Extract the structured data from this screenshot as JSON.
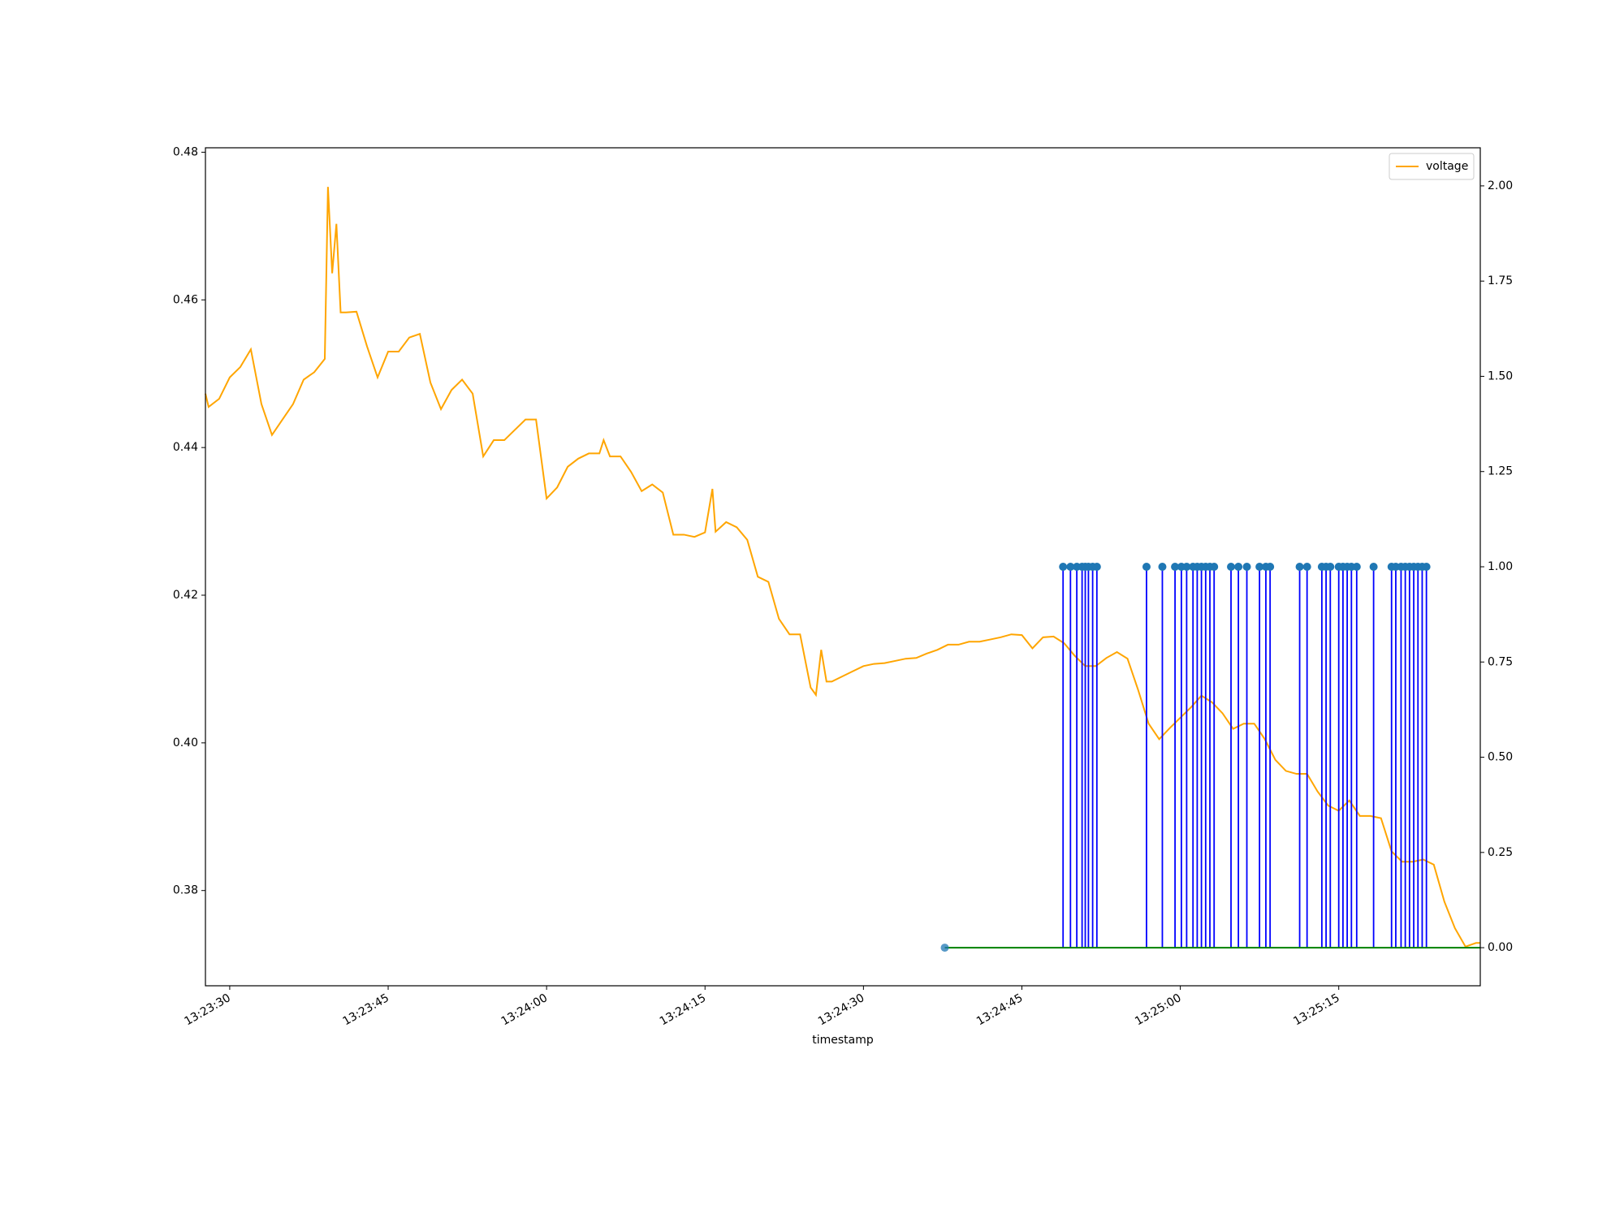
{
  "chart_data": {
    "type": "line",
    "xlabel": "timestamp",
    "xlim": [
      "13:23:27.7",
      "13:25:28.4"
    ],
    "xticks": [
      "13:23:30",
      "13:23:45",
      "13:24:00",
      "13:24:15",
      "13:24:30",
      "13:24:45",
      "13:25:00",
      "13:25:15"
    ],
    "ylim": [
      0.3671,
      0.4806
    ],
    "yticks": [
      0.38,
      {
        "value": 0.4,
        "label": "0.40"
      },
      0.42,
      0.44,
      0.46,
      0.48
    ],
    "y2lim": [
      -0.1,
      2.1
    ],
    "y2ticks": [
      {
        "value": 0,
        "label": "0.00"
      },
      0.25,
      {
        "value": 0.5,
        "label": "0.50"
      },
      0.75,
      {
        "value": 1,
        "label": "1.00"
      },
      1.25,
      {
        "value": 1.5,
        "label": "1.50"
      },
      1.75,
      {
        "value": 2,
        "label": "2.00"
      }
    ],
    "legend": "upper right",
    "series": [
      {
        "name": "voltage",
        "type": "line",
        "color": "#ffa500",
        "x": [
          "13:23:27.7",
          "13:23:28",
          "13:23:29",
          "13:23:30",
          "13:23:31",
          "13:23:32",
          "13:23:33",
          "13:23:34",
          "13:23:35",
          "13:23:36",
          "13:23:37",
          "13:23:38",
          "13:23:39",
          "13:23:39.3",
          "13:23:39.7",
          "13:23:40.1",
          "13:23:40.5",
          "13:23:41",
          "13:23:42",
          "13:23:43",
          "13:23:44",
          "13:23:45",
          "13:23:46",
          "13:23:47",
          "13:23:48",
          "13:23:49",
          "13:23:50",
          "13:23:51",
          "13:23:52",
          "13:23:53",
          "13:23:54",
          "13:23:55",
          "13:23:56",
          "13:23:57",
          "13:23:58",
          "13:23:59",
          "13:24:00",
          "13:24:01",
          "13:24:02",
          "13:24:03",
          "13:24:04",
          "13:24:05",
          "13:24:05.4",
          "13:24:06",
          "13:24:07",
          "13:24:08",
          "13:24:09",
          "13:24:10",
          "13:24:11",
          "13:24:12",
          "13:24:13",
          "13:24:14",
          "13:24:15",
          "13:24:15.7",
          "13:24:16",
          "13:24:17",
          "13:24:18",
          "13:24:19",
          "13:24:20",
          "13:24:21",
          "13:24:22",
          "13:24:23",
          "13:24:24",
          "13:24:25",
          "13:24:25.5",
          "13:24:26",
          "13:24:26.5",
          "13:24:27",
          "13:24:28",
          "13:24:29",
          "13:24:30",
          "13:24:31",
          "13:24:32",
          "13:24:33",
          "13:24:34",
          "13:24:35",
          "13:24:36",
          "13:24:37",
          "13:24:38",
          "13:24:39",
          "13:24:40",
          "13:24:41",
          "13:24:42",
          "13:24:43",
          "13:24:44",
          "13:24:45",
          "13:24:46",
          "13:24:47",
          "13:24:48",
          "13:24:49",
          "13:24:50",
          "13:24:51",
          "13:24:52",
          "13:24:53",
          "13:24:54",
          "13:24:55",
          "13:24:56",
          "13:24:57",
          "13:24:58",
          "13:24:59",
          "13:25:00",
          "13:25:01",
          "13:25:02",
          "13:25:03",
          "13:25:04",
          "13:25:05",
          "13:25:06",
          "13:25:07",
          "13:25:08",
          "13:25:09",
          "13:25:10",
          "13:25:11",
          "13:25:12",
          "13:25:13",
          "13:25:14",
          "13:25:15",
          "13:25:16",
          "13:25:17",
          "13:25:18",
          "13:25:19",
          "13:25:20",
          "13:25:21",
          "13:25:22",
          "13:25:23",
          "13:25:24",
          "13:25:25",
          "13:25:26",
          "13:25:27",
          "13:25:28",
          "13:25:28.4"
        ],
        "values": [
          0.4473,
          0.4455,
          0.4466,
          0.4495,
          0.4509,
          0.4533,
          0.4459,
          0.4417,
          0.4438,
          0.4459,
          0.4492,
          0.4502,
          0.452,
          0.4753,
          0.4636,
          0.4703,
          0.4583,
          0.4583,
          0.4584,
          0.4537,
          0.4495,
          0.453,
          0.453,
          0.4549,
          0.4554,
          0.4488,
          0.4452,
          0.4478,
          0.4492,
          0.4473,
          0.4388,
          0.441,
          0.441,
          0.4424,
          0.4438,
          0.4438,
          0.4331,
          0.4346,
          0.4374,
          0.4385,
          0.4392,
          0.4392,
          0.441,
          0.4388,
          0.4388,
          0.4367,
          0.4341,
          0.435,
          0.4339,
          0.4282,
          0.4282,
          0.4279,
          0.4285,
          0.4344,
          0.4286,
          0.4299,
          0.4292,
          0.4275,
          0.4225,
          0.4218,
          0.4168,
          0.4147,
          0.4147,
          0.4075,
          0.4065,
          0.4126,
          0.4083,
          0.4083,
          0.409,
          0.4097,
          0.4104,
          0.4107,
          0.4108,
          0.4111,
          0.4114,
          0.4115,
          0.4121,
          0.4126,
          0.4133,
          0.4133,
          0.4137,
          0.4137,
          0.414,
          0.4143,
          0.4147,
          0.4146,
          0.4128,
          0.4143,
          0.4144,
          0.4135,
          0.4118,
          0.4104,
          0.4104,
          0.4115,
          0.4123,
          0.4114,
          0.4072,
          0.4026,
          0.4005,
          0.402,
          0.4034,
          0.4048,
          0.4064,
          0.4055,
          0.404,
          0.4019,
          0.4026,
          0.4026,
          0.4005,
          0.3977,
          0.3962,
          0.3958,
          0.3958,
          0.3934,
          0.3915,
          0.3908,
          0.3922,
          0.3901,
          0.3901,
          0.3898,
          0.3853,
          0.3839,
          0.3839,
          0.3842,
          0.3835,
          0.3785,
          0.3749,
          0.3724,
          0.3729,
          0.3729
        ]
      },
      {
        "type": "stem",
        "axis": "y2",
        "color": "#0000ff",
        "marker_color": "#1f77b4",
        "baseline_color": "#008000",
        "x": [
          "13:24:37.7",
          "13:24:48.9",
          "13:24:49.6",
          "13:24:50.2",
          "13:24:50.7",
          "13:24:51.0",
          "13:24:51.3",
          "13:24:51.7",
          "13:24:52.1",
          "13:24:56.8",
          "13:24:58.3",
          "13:24:59.5",
          "13:25:00.1",
          "13:25:00.6",
          "13:25:01.2",
          "13:25:01.6",
          "13:25:02.0",
          "13:25:02.4",
          "13:25:02.8",
          "13:25:03.2",
          "13:25:04.8",
          "13:25:05.5",
          "13:25:06.3",
          "13:25:07.5",
          "13:25:08.1",
          "13:25:08.5",
          "13:25:11.3",
          "13:25:12.0",
          "13:25:13.4",
          "13:25:13.8",
          "13:25:14.2",
          "13:25:15.0",
          "13:25:15.4",
          "13:25:15.8",
          "13:25:16.2",
          "13:25:16.7",
          "13:25:18.3",
          "13:25:20.0",
          "13:25:20.4",
          "13:25:20.9",
          "13:25:21.3",
          "13:25:21.7",
          "13:25:22.1",
          "13:25:22.5",
          "13:25:22.9",
          "13:25:23.3"
        ],
        "values": [
          0,
          1,
          1,
          1,
          1,
          1,
          1,
          1,
          1,
          1,
          1,
          1,
          1,
          1,
          1,
          1,
          1,
          1,
          1,
          1,
          1,
          1,
          1,
          1,
          1,
          1,
          1,
          1,
          1,
          1,
          1,
          1,
          1,
          1,
          1,
          1,
          1,
          1,
          1,
          1,
          1,
          1,
          1,
          1,
          1,
          1
        ]
      }
    ]
  }
}
